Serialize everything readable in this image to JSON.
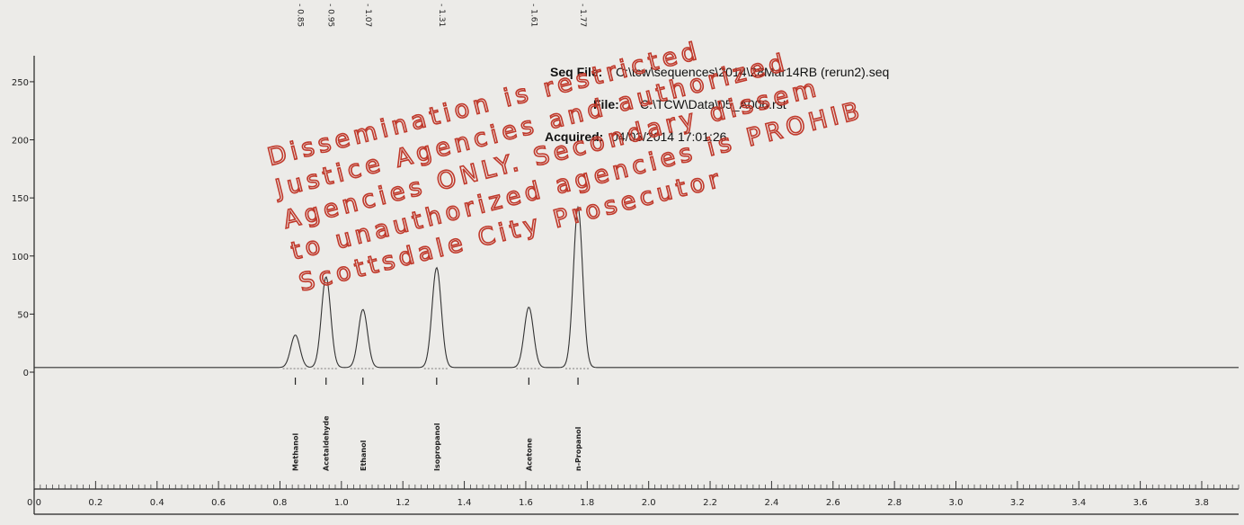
{
  "header": {
    "seq_file_label": "Seq File:",
    "seq_file_value": "C:\\tcw\\sequences\\2014\\28Mar14RB (rerun2).seq",
    "file_label": "File:",
    "file_value": "C:\\TCW\\Data\\05_A006.rst",
    "acquired_label": "Acquired:",
    "acquired_value": "04/03/2014 17:01:26"
  },
  "watermark": {
    "lines": [
      "Dissemination is restricted",
      "Justice Agencies and authorized",
      "Agencies ONLY. Secondary dissem",
      "to unauthorized agencies is PROHIB",
      "Scottsdale City Prosecutor"
    ],
    "color": "#c0392b"
  },
  "chart_data": {
    "type": "line",
    "title": "",
    "xlabel": "",
    "ylabel": "",
    "xlim": [
      0.0,
      3.92
    ],
    "ylim": [
      0,
      260
    ],
    "y_ticks": [
      0,
      50,
      100,
      150,
      200,
      250
    ],
    "y_tick_labels": [
      "0",
      "50",
      "100",
      "150",
      "200",
      "250"
    ],
    "x_ticks": [
      0.0,
      0.2,
      0.4,
      0.6,
      0.8,
      1.0,
      1.2,
      1.4,
      1.6,
      1.8,
      2.0,
      2.2,
      2.4,
      2.6,
      2.8,
      3.0,
      3.2,
      3.4,
      3.6,
      3.8
    ],
    "x_tick_labels": [
      "0.0",
      "0.2",
      "0.4",
      "0.6",
      "0.8",
      "1.0",
      "1.2",
      "1.4",
      "1.6",
      "1.8",
      "2.0",
      "2.2",
      "2.4",
      "2.6",
      "2.8",
      "3.0",
      "3.2",
      "3.4",
      "3.6",
      "3.8"
    ],
    "baseline": 4,
    "peaks": [
      {
        "rt": 0.85,
        "rt_label": "- 0.85",
        "height": 28,
        "name": "Methanol"
      },
      {
        "rt": 0.95,
        "rt_label": "- 0.95",
        "height": 78,
        "name": "Acetaldehyde"
      },
      {
        "rt": 1.07,
        "rt_label": "- 1.07",
        "height": 50,
        "name": "Ethanol"
      },
      {
        "rt": 1.31,
        "rt_label": "- 1.31",
        "height": 86,
        "name": "Isopropanol"
      },
      {
        "rt": 1.61,
        "rt_label": "- 1.61",
        "height": 52,
        "name": "Acetone"
      },
      {
        "rt": 1.77,
        "rt_label": "- 1.77",
        "height": 138,
        "name": "n-Propanol"
      }
    ],
    "grid": false,
    "legend": "none"
  }
}
